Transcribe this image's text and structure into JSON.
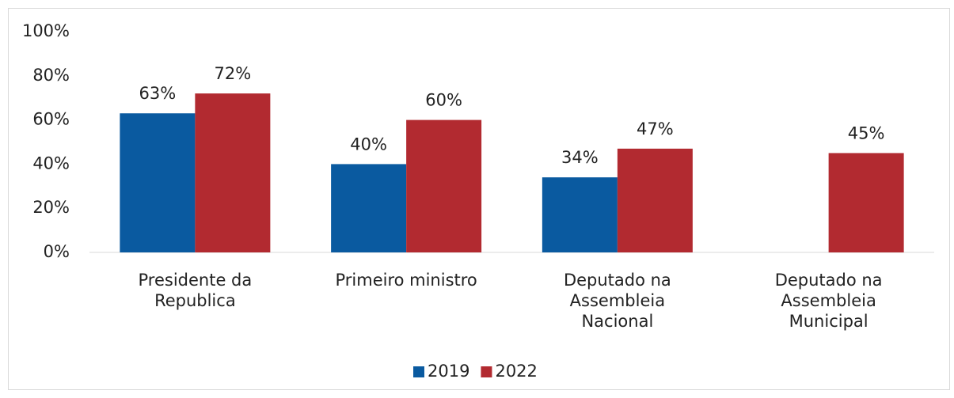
{
  "chart_data": {
    "type": "bar",
    "categories": [
      "Presidente da Republica",
      "Primeiro ministro",
      "Deputado na Assembleia Nacional",
      "Deputado na Assembleia Municipal"
    ],
    "series": [
      {
        "name": "2019",
        "color": "#0a5aa0",
        "values": [
          63,
          40,
          34,
          null
        ],
        "value_labels": [
          "63%",
          "40%",
          "34%",
          null
        ]
      },
      {
        "name": "2022",
        "color": "#b22a30",
        "values": [
          72,
          60,
          47,
          45
        ],
        "value_labels": [
          "72%",
          "60%",
          "47%",
          "45%"
        ]
      }
    ],
    "ylim": [
      0,
      100
    ],
    "yticks": [
      {
        "value": 0,
        "label": "0%"
      },
      {
        "value": 20,
        "label": "20%"
      },
      {
        "value": 40,
        "label": "40%"
      },
      {
        "value": 60,
        "label": "60%"
      },
      {
        "value": 80,
        "label": "80%"
      },
      {
        "value": 100,
        "label": "100%"
      }
    ],
    "grid": false,
    "legend": "bottom"
  }
}
